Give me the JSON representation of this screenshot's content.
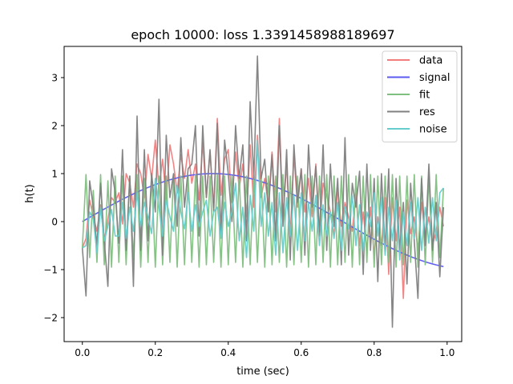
{
  "chart_data": {
    "type": "line",
    "title": "epoch 10000: loss 1.3391458988189697",
    "xlabel": "time (sec)",
    "ylabel": "h(t)",
    "xlim": [
      -0.05,
      1.04
    ],
    "ylim": [
      -2.5,
      3.65
    ],
    "x_ticks": [
      0.0,
      0.2,
      0.4,
      0.6,
      0.8,
      1.0
    ],
    "x_tick_labels": [
      "0.0",
      "0.2",
      "0.4",
      "0.6",
      "0.8",
      "1.0"
    ],
    "y_ticks": [
      -2,
      -1,
      0,
      1,
      2,
      3
    ],
    "y_tick_labels": [
      "−2",
      "−1",
      "0",
      "1",
      "2",
      "3"
    ],
    "grid": false,
    "legend_position": "top-right",
    "n_points": 100,
    "x_start": 0.0,
    "x_step": 0.01,
    "series": [
      {
        "name": "data",
        "color": "#f27d7d",
        "values": [
          -0.55,
          -0.35,
          0.45,
          0.1,
          -0.2,
          0.35,
          -0.4,
          0.05,
          0.5,
          0.4,
          0.6,
          -0.05,
          1.0,
          0.8,
          0.3,
          1.2,
          1.0,
          0.5,
          1.4,
          0.9,
          1.7,
          0.7,
          1.3,
          0.45,
          1.6,
          1.2,
          0.6,
          1.4,
          0.9,
          1.5,
          0.8,
          1.2,
          0.45,
          1.65,
          0.5,
          1.45,
          0.3,
          2.15,
          0.55,
          1.3,
          1.5,
          0.4,
          1.45,
          0.7,
          1.2,
          0.1,
          1.6,
          0.3,
          1.8,
          0.5,
          0.9,
          0.35,
          1.45,
          0.2,
          2.15,
          0.1,
          1.2,
          -0.3,
          1.4,
          0.3,
          1.1,
          0.2,
          0.9,
          0.1,
          1.2,
          -0.2,
          0.8,
          0.55,
          0.2,
          -0.3,
          0.7,
          -0.1,
          0.4,
          0.1,
          -0.2,
          0.6,
          -0.5,
          0.2,
          -0.6,
          0.3,
          -0.7,
          0.1,
          -0.5,
          0.5,
          -1.1,
          0.5,
          -0.4,
          0.3,
          -1.6,
          0.45,
          -0.25,
          0.1,
          -0.6,
          0.4,
          -0.3,
          0.1,
          -0.5,
          -0.2,
          0.3,
          -0.1
        ]
      },
      {
        "name": "signal",
        "color": "#5a5aef",
        "type": "sine",
        "amplitude": 1.0,
        "frequency_hz": 0.7,
        "description_values_from": "sin(2*pi*0.7*t)"
      },
      {
        "name": "fit",
        "color": "#7fbf7f",
        "values": [
          -0.55,
          0.98,
          -0.75,
          0.65,
          -0.85,
          0.98,
          -0.9,
          0.85,
          -0.95,
          0.95,
          -0.85,
          0.95,
          -0.9,
          0.95,
          -0.8,
          0.98,
          -0.95,
          0.9,
          -0.85,
          0.98,
          -0.95,
          0.95,
          -0.9,
          0.95,
          -0.85,
          0.98,
          -0.95,
          0.95,
          -0.9,
          0.95,
          -0.85,
          0.98,
          -0.95,
          0.95,
          -0.9,
          0.95,
          -0.85,
          0.98,
          -0.95,
          0.95,
          -0.9,
          0.95,
          -0.85,
          0.98,
          -0.95,
          0.95,
          -0.9,
          0.95,
          -0.85,
          0.98,
          -0.95,
          0.95,
          -0.9,
          0.95,
          -0.85,
          0.98,
          -0.95,
          0.95,
          -0.9,
          0.95,
          -0.85,
          0.98,
          -0.95,
          0.95,
          -0.9,
          0.95,
          -0.85,
          0.98,
          -0.95,
          0.95,
          -0.9,
          0.95,
          -0.85,
          0.98,
          -0.95,
          0.95,
          -0.9,
          0.95,
          -0.85,
          0.98,
          -0.95,
          0.95,
          -0.9,
          0.95,
          -0.85,
          0.98,
          -0.95,
          0.95,
          -0.9,
          0.95,
          -0.85,
          0.98,
          -0.95,
          0.95,
          -0.9,
          0.95,
          -0.85,
          0.98,
          -0.75,
          0.7
        ]
      },
      {
        "name": "res",
        "color": "#808080",
        "values": [
          -0.55,
          -1.55,
          0.85,
          0.3,
          -0.5,
          0.8,
          -0.4,
          -1.35,
          1.1,
          0.6,
          -0.45,
          1.5,
          -0.6,
          0.95,
          -1.35,
          2.2,
          -0.6,
          1.5,
          -0.4,
          1.0,
          0.2,
          2.55,
          -0.7,
          1.8,
          0.5,
          1.0,
          -0.1,
          1.75,
          0.3,
          1.1,
          1.2,
          2.0,
          -0.3,
          2.0,
          0.5,
          1.5,
          0.2,
          2.05,
          -0.25,
          1.7,
          1.0,
          0.0,
          2.0,
          0.9,
          1.6,
          -0.4,
          2.5,
          0.9,
          3.45,
          0.9,
          1.3,
          0.2,
          1.4,
          -0.4,
          2.0,
          -0.1,
          1.5,
          -0.8,
          1.6,
          0.4,
          1.1,
          -0.7,
          1.6,
          0.3,
          1.15,
          -0.3,
          1.6,
          -0.6,
          1.2,
          -0.1,
          0.9,
          -0.9,
          1.75,
          -0.7,
          0.8,
          0.3,
          1.05,
          -1.1,
          1.2,
          -0.6,
          0.9,
          -1.25,
          1.0,
          -0.6,
          1.1,
          -2.2,
          0.9,
          -0.6,
          0.4,
          -1.3,
          0.8,
          -0.4,
          -1.6,
          0.9,
          -0.5,
          1.2,
          -0.6,
          0.4,
          -1.15,
          0.3
        ]
      },
      {
        "name": "noise",
        "color": "#66cccc",
        "values": [
          -0.55,
          -0.5,
          0.2,
          0.05,
          -0.65,
          0.3,
          -0.4,
          -0.1,
          0.25,
          -0.3,
          -0.3,
          0.4,
          -0.35,
          0.3,
          -0.2,
          0.6,
          -0.1,
          0.4,
          0.1,
          -0.25,
          0.9,
          0.3,
          -0.3,
          0.45,
          0.1,
          -0.2,
          0.75,
          0.2,
          -0.15,
          0.6,
          -0.2,
          0.35,
          -0.1,
          0.2,
          0.45,
          -0.3,
          0.2,
          0.3,
          -0.35,
          0.4,
          -0.1,
          0.2,
          0.8,
          -0.4,
          0.3,
          -0.75,
          0.55,
          -0.2,
          1.7,
          -0.1,
          0.6,
          -0.3,
          0.4,
          -0.7,
          0.6,
          -0.65,
          0.5,
          -0.3,
          0.55,
          -0.6,
          0.6,
          -0.4,
          0.4,
          -0.2,
          0.55,
          -0.5,
          0.35,
          -0.3,
          0.2,
          -0.35,
          0.4,
          -0.6,
          0.3,
          -0.15,
          0.55,
          -0.5,
          0.35,
          -0.6,
          0.2,
          -0.1,
          0.6,
          -0.3,
          0.5,
          -0.7,
          0.3,
          -0.4,
          0.45,
          -0.8,
          0.2,
          -0.5,
          0.4,
          -0.35,
          0.5,
          -0.6,
          0.3,
          -0.45,
          0.5,
          -0.4,
          0.6,
          0.7
        ]
      }
    ]
  }
}
